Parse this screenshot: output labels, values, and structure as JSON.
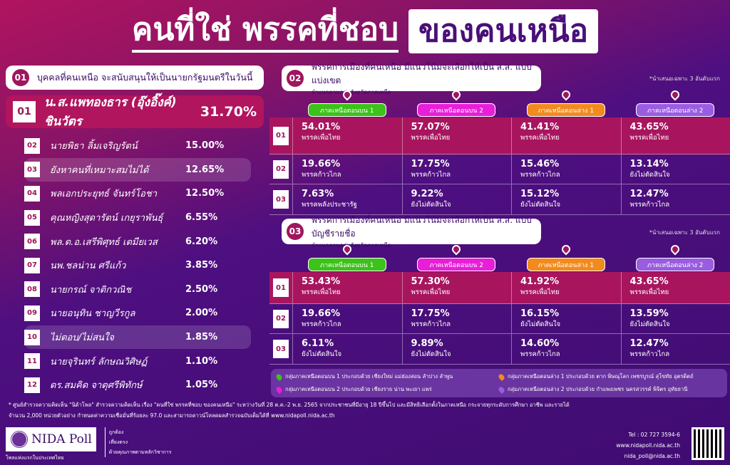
{
  "title": {
    "part1": "คนที่ใช่ พรรคที่ชอบ",
    "part2": "ของคนเหนือ"
  },
  "section1": {
    "num": "01",
    "heading": "บุคคลที่คนเหนือ จะสนับสนุนให้เป็นนายกรัฐมนตรีในวันนี้",
    "top": {
      "rank": "01",
      "name": "น.ส.แพทองธาร (อุ๊งอิ๊งค์) ชินวัตร",
      "pct": "31.70%"
    },
    "rows": [
      {
        "rank": "02",
        "name": "นายพิธา ลิ้มเจริญรัตน์",
        "pct": "15.00%"
      },
      {
        "rank": "03",
        "name": "ยังหาคนที่เหมาะสมไม่ได้",
        "pct": "12.65%",
        "hl": true
      },
      {
        "rank": "04",
        "name": "พลเอกประยุทธ์ จันทร์โอชา",
        "pct": "12.50%"
      },
      {
        "rank": "05",
        "name": "คุณหญิงสุดารัตน์ เกยุราพันธุ์",
        "pct": "6.55%"
      },
      {
        "rank": "06",
        "name": "พล.ต.อ.เสรีพิศุทธ์ เตมียเวส",
        "pct": "6.20%"
      },
      {
        "rank": "07",
        "name": "นพ.ชลน่าน ศรีแก้ว",
        "pct": "3.85%"
      },
      {
        "rank": "08",
        "name": "นายกรณ์ จาติกวณิช",
        "pct": "2.50%"
      },
      {
        "rank": "09",
        "name": "นายอนุทิน ชาญวีรกูล",
        "pct": "2.00%"
      },
      {
        "rank": "10",
        "name": "ไม่ตอบ/ไม่สนใจ",
        "pct": "1.85%",
        "hl": true
      },
      {
        "rank": "11",
        "name": "นายจุรินทร์ ลักษณวิศิษฏ์",
        "pct": "1.10%"
      },
      {
        "rank": "12",
        "name": "ดร.สมคิด จาตุศรีพิทักษ์",
        "pct": "1.05%"
      }
    ]
  },
  "regions": [
    {
      "label": "ภาคเหนือตอนบน 1",
      "color": "#3cc21a"
    },
    {
      "label": "ภาคเหนือตอนบน 2",
      "color": "#e81ed8"
    },
    {
      "label": "ภาคเหนือตอนล่าง 1",
      "color": "#f28a1e"
    },
    {
      "label": "ภาคเหนือตอนล่าง 2",
      "color": "#9a5ce0"
    }
  ],
  "section2": {
    "num": "02",
    "heading": "พรรคการเมืองที่คนเหนือ มีแนวโน้มจะเลือกให้เป็น ส.ส. แบบแบ่งเขต",
    "sub": "จำแนกตามกลุ่มจังหวัดภาคเหนือ",
    "note": "*นำเสนอเฉพาะ 3 อันดับแรก",
    "rows": [
      {
        "rank": "01",
        "cells": [
          [
            "54.01%",
            "พรรคเพื่อไทย"
          ],
          [
            "57.07%",
            "พรรคเพื่อไทย"
          ],
          [
            "41.41%",
            "พรรคเพื่อไทย"
          ],
          [
            "43.65%",
            "พรรคเพื่อไทย"
          ]
        ]
      },
      {
        "rank": "02",
        "cells": [
          [
            "19.66%",
            "พรรคก้าวไกล"
          ],
          [
            "17.75%",
            "พรรคก้าวไกล"
          ],
          [
            "15.46%",
            "พรรคก้าวไกล"
          ],
          [
            "13.14%",
            "ยังไม่ตัดสินใจ"
          ]
        ]
      },
      {
        "rank": "03",
        "cells": [
          [
            "7.63%",
            "พรรคพลังประชารัฐ"
          ],
          [
            "9.22%",
            "ยังไม่ตัดสินใจ"
          ],
          [
            "15.12%",
            "ยังไม่ตัดสินใจ"
          ],
          [
            "12.47%",
            "พรรคก้าวไกล"
          ]
        ]
      }
    ]
  },
  "section3": {
    "num": "03",
    "heading": "พรรคการเมืองที่คนเหนือ มีแนวโน้มจะเลือกให้เป็น ส.ส. แบบบัญชีรายชื่อ",
    "sub": "จำแนกตามกลุ่มจังหวัดภาคเหนือ",
    "note": "*นำเสนอเฉพาะ 3 อันดับแรก",
    "rows": [
      {
        "rank": "01",
        "cells": [
          [
            "53.43%",
            "พรรคเพื่อไทย"
          ],
          [
            "57.30%",
            "พรรคเพื่อไทย"
          ],
          [
            "41.92%",
            "พรรคเพื่อไทย"
          ],
          [
            "43.65%",
            "พรรคเพื่อไทย"
          ]
        ]
      },
      {
        "rank": "02",
        "cells": [
          [
            "19.66%",
            "พรรคก้าวไกล"
          ],
          [
            "17.75%",
            "พรรคก้าวไกล"
          ],
          [
            "16.15%",
            "ยังไม่ตัดสินใจ"
          ],
          [
            "13.59%",
            "ยังไม่ตัดสินใจ"
          ]
        ]
      },
      {
        "rank": "03",
        "cells": [
          [
            "6.11%",
            "ยังไม่ตัดสินใจ"
          ],
          [
            "9.89%",
            "ยังไม่ตัดสินใจ"
          ],
          [
            "14.60%",
            "พรรคก้าวไกล"
          ],
          [
            "12.47%",
            "พรรคก้าวไกล"
          ]
        ]
      }
    ]
  },
  "legend": [
    {
      "text": "กลุ่มภาคเหนือตอนบน 1 ประกอบด้วย เชียงใหม่ แม่ฮ่องสอน ลำปาง ลำพูน",
      "color": "#3cc21a"
    },
    {
      "text": "กลุ่มภาคเหนือตอนล่าง 1 ประกอบด้วย ตาก พิษณุโลก เพชรบูรณ์ สุโขทัย อุตรดิตถ์",
      "color": "#f28a1e"
    },
    {
      "text": "กลุ่มภาคเหนือตอนบน 2 ประกอบด้วย เชียงราย น่าน พะเยา แพร่",
      "color": "#e81ed8"
    },
    {
      "text": "กลุ่มภาคเหนือตอนล่าง 2 ประกอบด้วย กำแพงเพชร นครสวรรค์ พิจิตร อุทัยธานี",
      "color": "#9a5ce0"
    }
  ],
  "footnote": {
    "line1": "* ศูนย์สำรวจความคิดเห็น \"นิด้าโพล\" สำรวจความคิดเห็น เรื่อง \"คนที่ใช่ พรรคที่ชอบ ของคนเหนือ\" ระหว่างวันที่ 28 ต.ค.-2 พ.ย. 2565 จากประชาชนที่มีอายุ 18 ปีขึ้นไป และมีสิทธิเลือกตั้งในภาคเหนือ กระจายทุกระดับการศึกษา อาชีพ และรายได้",
    "line2": "จำนวน 2,000 หน่วยตัวอย่าง กำหนดค่าความเชื่อมั่นที่ร้อยละ 97.0 และสามารถดาวน์โหลดผลสำรวจฉบับเต็มได้ที่ www.nidapoll.nida.ac.th"
  },
  "logo": {
    "name": "NIDA Poll",
    "tagline": "โพลแห่งแรกในประเทศไทย",
    "slogan": [
      "ถูกต้อง",
      "เที่ยงตรง",
      "ด้วยคุณภาพตามหลักวิชาการ"
    ]
  },
  "contact": {
    "tel": "Tel : 02 727 3594-6",
    "web": "www.nidapoll.nida.ac.th",
    "email": "nida_poll@nida.ac.th"
  }
}
